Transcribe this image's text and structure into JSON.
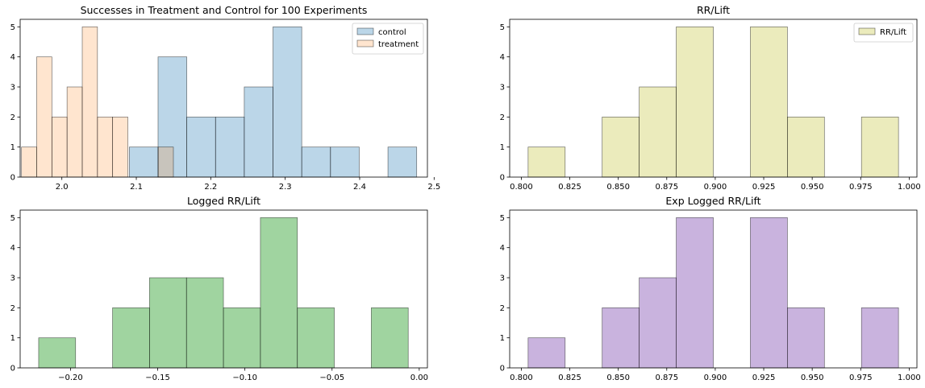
{
  "chart_data": [
    {
      "type": "bar",
      "title": "Successes in Treatment and Control for 100 Experiments",
      "xlabel": "",
      "ylabel": "",
      "xlim": [
        1.944,
        2.491
      ],
      "ylim": [
        0,
        5.25
      ],
      "xticks": [
        2.0,
        2.1,
        2.2,
        2.3,
        2.4,
        2.5
      ],
      "xtick_labels": [
        "2.0",
        "2.1",
        "2.2",
        "2.3",
        "2.4",
        "2.5"
      ],
      "yticks": [
        0,
        1,
        2,
        3,
        4,
        5
      ],
      "ytick_labels": [
        "0",
        "1",
        "2",
        "3",
        "4",
        "5"
      ],
      "legend": "top-right",
      "grid": false,
      "series": [
        {
          "name": "control",
          "color": "#1f77b4",
          "opacity": 0.3,
          "bin_edges": [
            2.0906,
            2.1292,
            2.1678,
            2.2064,
            2.245,
            2.2836,
            2.3222,
            2.3608,
            2.3994,
            2.438,
            2.4766
          ],
          "counts": [
            1,
            4,
            2,
            2,
            3,
            5,
            1,
            1,
            0,
            1
          ]
        },
        {
          "name": "treatment",
          "color": "#ff7f0e",
          "opacity": 0.2,
          "bin_edges": [
            1.9458,
            1.9662,
            1.9866,
            2.007,
            2.0274,
            2.0478,
            2.0682,
            2.0886,
            2.109,
            2.1294,
            2.1498
          ],
          "counts": [
            1,
            4,
            2,
            3,
            5,
            2,
            2,
            0,
            0,
            1
          ]
        }
      ]
    },
    {
      "type": "bar",
      "title": "RR/Lift",
      "xlabel": "",
      "ylabel": "",
      "xlim": [
        0.794,
        1.004
      ],
      "ylim": [
        0,
        5.25
      ],
      "xticks": [
        0.8,
        0.825,
        0.85,
        0.875,
        0.9,
        0.925,
        0.95,
        0.975,
        1.0
      ],
      "xtick_labels": [
        "0.800",
        "0.825",
        "0.850",
        "0.875",
        "0.900",
        "0.925",
        "0.950",
        "0.975",
        "1.000"
      ],
      "yticks": [
        0,
        1,
        2,
        3,
        4,
        5
      ],
      "ytick_labels": [
        "0",
        "1",
        "2",
        "3",
        "4",
        "5"
      ],
      "legend": "top-right",
      "grid": false,
      "series": [
        {
          "name": "RR/Lift",
          "color": "#bcbd22",
          "opacity": 0.3,
          "bin_edges": [
            0.8035,
            0.8226,
            0.8417,
            0.8608,
            0.8799,
            0.899,
            0.9181,
            0.9372,
            0.9563,
            0.9754,
            0.9945
          ],
          "counts": [
            1,
            0,
            2,
            3,
            5,
            0,
            5,
            2,
            0,
            2
          ]
        }
      ]
    },
    {
      "type": "bar",
      "title": "Logged RR/Lift",
      "xlabel": "",
      "ylabel": "",
      "xlim": [
        -0.2289,
        0.0047
      ],
      "ylim": [
        0,
        5.25
      ],
      "xticks": [
        -0.2,
        -0.15,
        -0.1,
        -0.05,
        0.0
      ],
      "xtick_labels": [
        "−0.20",
        "−0.15",
        "−0.10",
        "−0.05",
        "0.00"
      ],
      "yticks": [
        0,
        1,
        2,
        3,
        4,
        5
      ],
      "ytick_labels": [
        "0",
        "1",
        "2",
        "3",
        "4",
        "5"
      ],
      "legend": "none",
      "grid": false,
      "series": [
        {
          "color": "#2ca02c",
          "opacity": 0.45,
          "bin_edges": [
            -0.2183,
            -0.1971,
            -0.1759,
            -0.1547,
            -0.1335,
            -0.1123,
            -0.0911,
            -0.0699,
            -0.0487,
            -0.0275,
            -0.0063
          ],
          "counts": [
            1,
            0,
            2,
            3,
            3,
            2,
            5,
            2,
            0,
            2
          ]
        }
      ]
    },
    {
      "type": "bar",
      "title": "Exp Logged RR/Lift",
      "xlabel": "",
      "ylabel": "",
      "xlim": [
        0.794,
        1.004
      ],
      "ylim": [
        0,
        5.25
      ],
      "xticks": [
        0.8,
        0.825,
        0.85,
        0.875,
        0.9,
        0.925,
        0.95,
        0.975,
        1.0
      ],
      "xtick_labels": [
        "0.800",
        "0.825",
        "0.850",
        "0.875",
        "0.900",
        "0.925",
        "0.950",
        "0.975",
        "1.000"
      ],
      "yticks": [
        0,
        1,
        2,
        3,
        4,
        5
      ],
      "ytick_labels": [
        "0",
        "1",
        "2",
        "3",
        "4",
        "5"
      ],
      "legend": "none",
      "grid": false,
      "series": [
        {
          "color": "#9467bd",
          "opacity": 0.5,
          "bin_edges": [
            0.8035,
            0.8226,
            0.8417,
            0.8608,
            0.8799,
            0.899,
            0.9181,
            0.9372,
            0.9563,
            0.9754,
            0.9945
          ],
          "counts": [
            1,
            0,
            2,
            3,
            5,
            0,
            5,
            2,
            0,
            2
          ]
        }
      ]
    }
  ]
}
